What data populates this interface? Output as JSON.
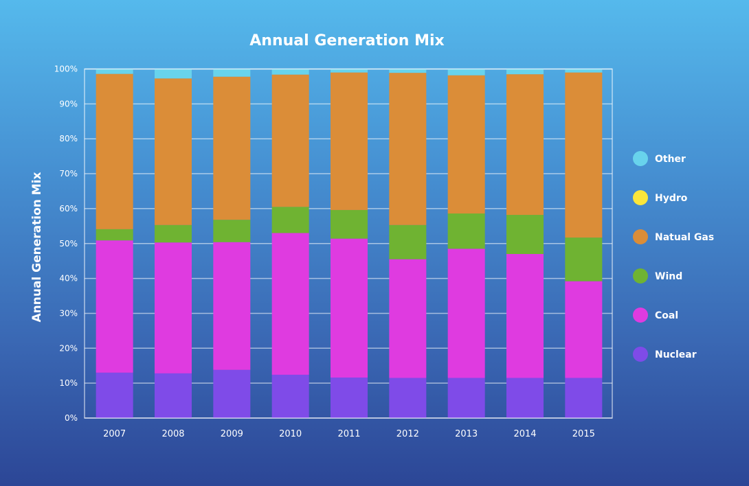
{
  "chart_data": {
    "type": "bar",
    "stacked": true,
    "title": "Annual Generation Mix",
    "xlabel": "",
    "ylabel": "Annual Generation Mix",
    "ylim": [
      0,
      100
    ],
    "y_ticks": [
      "0%",
      "10%",
      "20%",
      "30%",
      "40%",
      "50%",
      "60%",
      "70%",
      "80%",
      "90%",
      "100%"
    ],
    "grid": true,
    "legend_position": "right",
    "categories": [
      "2007",
      "2008",
      "2009",
      "2010",
      "2011",
      "2012",
      "2013",
      "2014",
      "2015"
    ],
    "series": [
      {
        "name": "Nuclear",
        "color": "#7f4be8",
        "values": [
          13.0,
          12.8,
          13.8,
          12.4,
          11.6,
          11.5,
          11.5,
          11.5,
          11.5
        ]
      },
      {
        "name": "Coal",
        "color": "#df3be0",
        "values": [
          37.9,
          37.5,
          36.6,
          40.6,
          39.8,
          34.0,
          37.0,
          35.5,
          27.7
        ]
      },
      {
        "name": "Wind",
        "color": "#6fb332",
        "values": [
          3.2,
          5.0,
          6.4,
          7.5,
          8.2,
          9.8,
          10.1,
          11.2,
          12.5
        ]
      },
      {
        "name": "Natual Gas",
        "color": "#db8d38",
        "values": [
          44.5,
          42.0,
          41.0,
          37.9,
          39.4,
          43.6,
          39.6,
          40.3,
          47.3
        ]
      },
      {
        "name": "Hydro",
        "color": "#fbe63b",
        "values": [
          0,
          0,
          0,
          0,
          0,
          0,
          0,
          0,
          0
        ]
      },
      {
        "name": "Other",
        "color": "#68d3ec",
        "values": [
          1.4,
          2.7,
          2.2,
          1.6,
          1.0,
          1.1,
          1.8,
          1.5,
          1.0
        ]
      }
    ],
    "legend_order": [
      "Other",
      "Hydro",
      "Natual Gas",
      "Wind",
      "Coal",
      "Nuclear"
    ]
  }
}
